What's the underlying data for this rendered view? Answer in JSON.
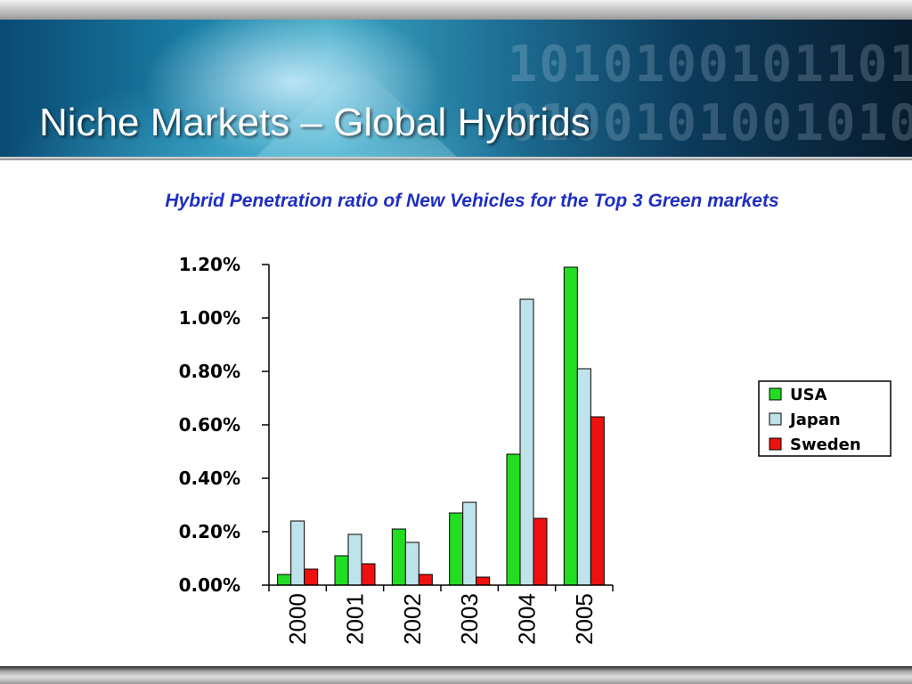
{
  "slide": {
    "title": "Niche Markets – Global Hybrids",
    "header_binary": [
      "1010100101101",
      "0100101001010"
    ]
  },
  "chart_data": {
    "type": "bar",
    "title": "Hybrid Penetration ratio of New Vehicles for the Top 3 Green markets",
    "categories": [
      "2000",
      "2001",
      "2002",
      "2003",
      "2004",
      "2005"
    ],
    "series": [
      {
        "name": "USA",
        "color": "#22dd22",
        "values": [
          0.04,
          0.11,
          0.21,
          0.27,
          0.49,
          1.19
        ]
      },
      {
        "name": "Japan",
        "color": "#bfe3ea",
        "values": [
          0.24,
          0.19,
          0.16,
          0.31,
          1.07,
          0.81
        ]
      },
      {
        "name": "Sweden",
        "color": "#ee1111",
        "values": [
          0.06,
          0.08,
          0.04,
          0.03,
          0.25,
          0.63
        ]
      }
    ],
    "y_ticks": [
      "0.00%",
      "0.20%",
      "0.40%",
      "0.60%",
      "0.80%",
      "1.00%",
      "1.20%"
    ],
    "ylim": [
      0,
      1.2
    ],
    "y_unit": "%",
    "grid": false,
    "legend": "right"
  }
}
